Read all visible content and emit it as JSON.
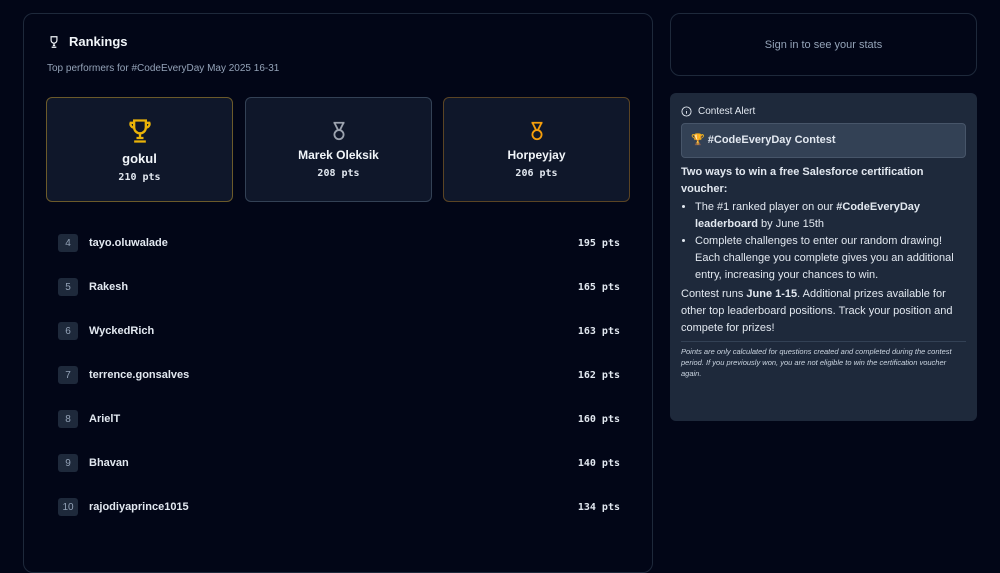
{
  "rankings": {
    "title": "Rankings",
    "subtitle": "Top performers for #CodeEveryDay May 2025 16-31",
    "podium": [
      {
        "name": "gokul",
        "points": "210 pts",
        "icon": "trophy-icon",
        "color": "#eab308"
      },
      {
        "name": "Marek Oleksik",
        "points": "208 pts",
        "icon": "medal-icon",
        "color": "#9ca3af"
      },
      {
        "name": "Horpeyjay",
        "points": "206 pts",
        "icon": "medal-icon",
        "color": "#f59e0b"
      }
    ],
    "list": [
      {
        "rank": "4",
        "name": "tayo.oluwalade",
        "points": "195 pts"
      },
      {
        "rank": "5",
        "name": "Rakesh",
        "points": "165 pts"
      },
      {
        "rank": "6",
        "name": "WyckedRich",
        "points": "163 pts"
      },
      {
        "rank": "7",
        "name": "terrence.gonsalves",
        "points": "162 pts"
      },
      {
        "rank": "8",
        "name": "ArielT",
        "points": "160 pts"
      },
      {
        "rank": "9",
        "name": "Bhavan",
        "points": "140 pts"
      },
      {
        "rank": "10",
        "name": "rajodiyaprince1015",
        "points": "134 pts"
      }
    ]
  },
  "signin": "Sign in to see your stats",
  "alert": {
    "header": "Contest Alert",
    "box": "🏆 #CodeEveryDay Contest",
    "intro": "Two ways to win a free Salesforce certification voucher:",
    "b1a": "The #1 ranked player on our ",
    "b1b": "#CodeEveryDay leaderboard",
    "b1c": " by June 15th",
    "b2": "Complete challenges to enter our random drawing! Each challenge you complete gives you an additional entry, increasing your chances to win.",
    "r1": "Contest runs ",
    "r2": "June 1-15",
    "r3": ". Additional prizes available for other top leaderboard positions. Track your position and compete for prizes!",
    "note": "Points are only calculated for questions created and completed during the contest period. If you previously won, you are not eligible to win the certification voucher again."
  }
}
